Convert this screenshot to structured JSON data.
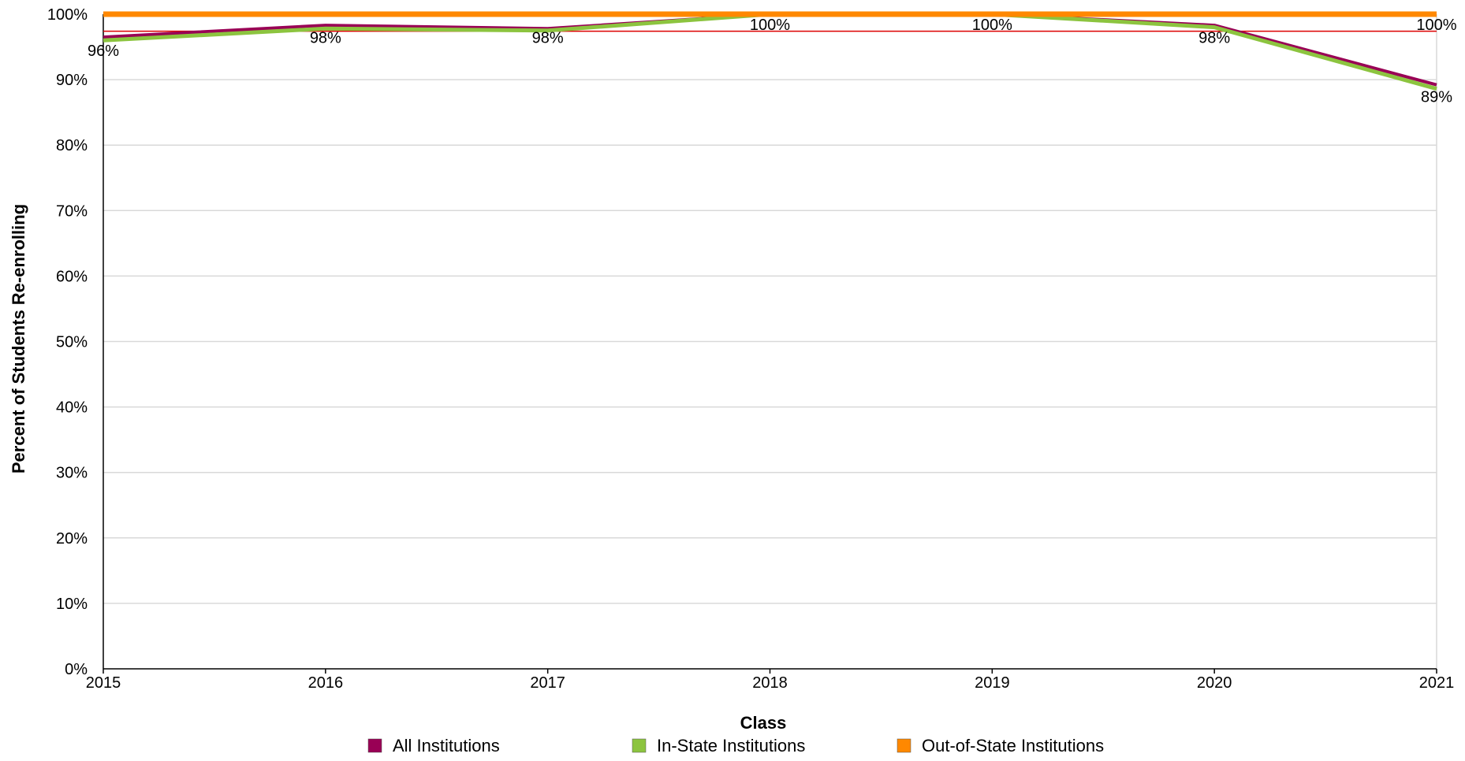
{
  "chart_data": {
    "type": "line",
    "title": "",
    "xlabel": "Class",
    "ylabel": "Percent of Students Re-enrolling",
    "categories": [
      "2015",
      "2016",
      "2017",
      "2018",
      "2019",
      "2020",
      "2021"
    ],
    "y_ticks": [
      "0%",
      "10%",
      "20%",
      "30%",
      "40%",
      "50%",
      "60%",
      "70%",
      "80%",
      "90%",
      "100%"
    ],
    "ylim": [
      0,
      100
    ],
    "grid": true,
    "legend_position": "bottom",
    "series": [
      {
        "name": "All Institutions",
        "color": "#990055",
        "values": [
          96.5,
          98.3,
          97.8,
          100,
          100,
          98.3,
          89.2
        ]
      },
      {
        "name": "In-State Institutions",
        "color": "#8cc43f",
        "values": [
          96,
          97.8,
          97.5,
          100,
          100,
          98,
          88.6
        ]
      },
      {
        "name": "Out-of-State Institutions",
        "color": "#ff8800",
        "values": [
          100,
          100,
          100,
          100,
          100,
          100,
          100
        ]
      }
    ],
    "reference_line": {
      "value": 97.4,
      "color": "#dd0000"
    },
    "data_labels": [
      {
        "category": "2015",
        "value": 96,
        "text": "96%"
      },
      {
        "category": "2016",
        "value": 98,
        "text": "98%"
      },
      {
        "category": "2017",
        "value": 98,
        "text": "98%"
      },
      {
        "category": "2018",
        "value": 100,
        "text": "100%"
      },
      {
        "category": "2019",
        "value": 100,
        "text": "100%"
      },
      {
        "category": "2020",
        "value": 98,
        "text": "98%"
      },
      {
        "category": "2021",
        "value": 89,
        "text": "89%"
      },
      {
        "category": "2021",
        "value": 100,
        "text": "100%"
      }
    ]
  }
}
